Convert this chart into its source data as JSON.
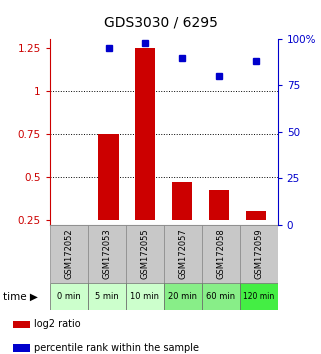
{
  "title": "GDS3030 / 6295",
  "samples": [
    "GSM172052",
    "GSM172053",
    "GSM172055",
    "GSM172057",
    "GSM172058",
    "GSM172059"
  ],
  "time_labels": [
    "0 min",
    "5 min",
    "10 min",
    "20 min",
    "60 min",
    "120 min"
  ],
  "log2_ratio": [
    0.25,
    0.75,
    1.25,
    0.47,
    0.42,
    0.3
  ],
  "percentile_rank_pct": [
    null,
    95,
    98,
    90,
    80,
    88
  ],
  "bar_color": "#cc0000",
  "dot_color": "#0000cc",
  "bar_bottom": 0.25,
  "ylim_left": [
    0.22,
    1.3
  ],
  "ylim_right": [
    0,
    100
  ],
  "yticks_left": [
    0.25,
    0.5,
    0.75,
    1.0,
    1.25
  ],
  "ytick_labels_left": [
    "0.25",
    "0.5",
    "0.75",
    "1",
    "1.25"
  ],
  "yticks_right": [
    0,
    25,
    50,
    75,
    100
  ],
  "ytick_labels_right": [
    "0",
    "25",
    "50",
    "75",
    "100%"
  ],
  "hlines": [
    0.5,
    0.75,
    1.0
  ],
  "left_axis_color": "#cc0000",
  "right_axis_color": "#0000cc",
  "sample_box_color": "#c8c8c8",
  "time_box_colors": [
    "#ccffcc",
    "#ccffcc",
    "#ccffcc",
    "#88ee88",
    "#88ee88",
    "#44ee44"
  ],
  "legend_items": [
    {
      "color": "#cc0000",
      "label": "log2 ratio"
    },
    {
      "color": "#0000cc",
      "label": "percentile rank within the sample"
    }
  ]
}
